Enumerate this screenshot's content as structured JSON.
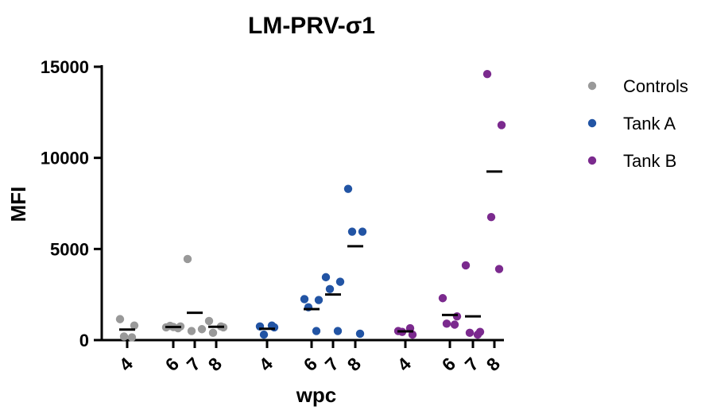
{
  "chart_data": {
    "type": "scatter",
    "title": "LM-PRV-σ1",
    "xlabel": "wpc",
    "ylabel": "MFI",
    "ylim": [
      0,
      15000
    ],
    "yticks": [
      0,
      5000,
      10000,
      15000
    ],
    "ytick_labels": [
      "0",
      "5000",
      "10000",
      "15000"
    ],
    "legend_position": "right",
    "groups": [
      {
        "series": "Controls",
        "wpc": "4",
        "values": [
          1150,
          800,
          200,
          150
        ],
        "mean": 580
      },
      {
        "series": "Controls",
        "wpc": "6",
        "values": [
          700,
          750,
          780,
          650,
          720
        ],
        "mean": 720
      },
      {
        "series": "Controls",
        "wpc": "7",
        "values": [
          4450,
          600,
          500
        ],
        "mean": 1500
      },
      {
        "series": "Controls",
        "wpc": "8",
        "values": [
          1050,
          700,
          400,
          750
        ],
        "mean": 730
      },
      {
        "series": "Tank A",
        "wpc": "4",
        "values": [
          750,
          700,
          300,
          800
        ],
        "mean": 620
      },
      {
        "series": "Tank A",
        "wpc": "6",
        "values": [
          2250,
          2200,
          1800,
          500
        ],
        "mean": 1700
      },
      {
        "series": "Tank A",
        "wpc": "7",
        "values": [
          3450,
          3200,
          2800,
          500
        ],
        "mean": 2500
      },
      {
        "series": "Tank A",
        "wpc": "8",
        "values": [
          8300,
          5950,
          5950,
          350
        ],
        "mean": 5150
      },
      {
        "series": "Tank B",
        "wpc": "4",
        "values": [
          500,
          300,
          450,
          650
        ],
        "mean": 480
      },
      {
        "series": "Tank B",
        "wpc": "6",
        "values": [
          2300,
          1300,
          900,
          850
        ],
        "mean": 1380
      },
      {
        "series": "Tank B",
        "wpc": "7",
        "values": [
          4100,
          450,
          400,
          300
        ],
        "mean": 1300
      },
      {
        "series": "Tank B",
        "wpc": "8",
        "values": [
          14600,
          11800,
          6750,
          3900
        ],
        "mean": 9250
      }
    ],
    "legend": [
      {
        "name": "Controls",
        "color": "#999999"
      },
      {
        "name": "Tank A",
        "color": "#2254a4"
      },
      {
        "name": "Tank B",
        "color": "#7b2a8e"
      }
    ]
  }
}
